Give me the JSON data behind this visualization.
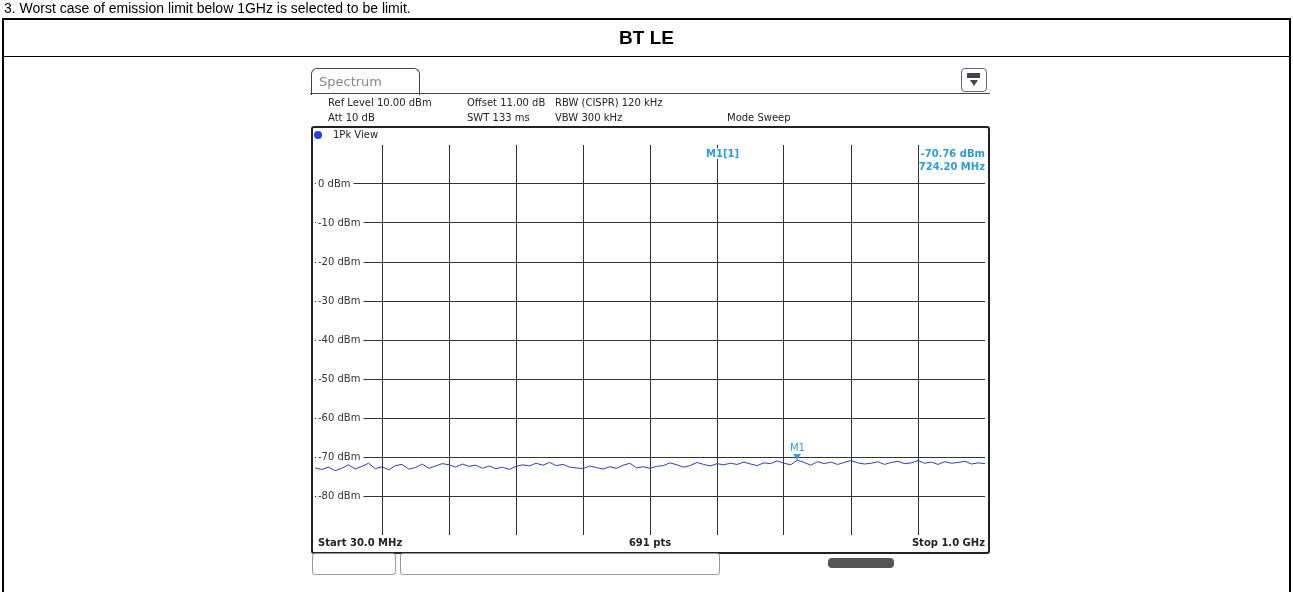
{
  "chart_data": {
    "type": "line",
    "title": "BT LE",
    "annotations": [
      "3.  Worst case of emission limit below 1GHz is selected to be limit.",
      "Spectrum",
      "Ref Level 10.00 dBm",
      "Offset 11.00 dB",
      "RBW (CISPR) 120 kHz",
      "Att 10 dB",
      "SWT 133 ms",
      "VBW 300 kHz",
      "Mode Sweep",
      "1Pk View",
      "M1[1]",
      "-70.76 dBm",
      "724.20 MHz",
      "Start 30.0 MHz",
      "691 pts",
      "Stop 1.0 GHz",
      {
        "text": "M1",
        "y": -70.76
      }
    ],
    "categories": [
      null,
      null,
      null,
      null,
      null,
      null,
      null,
      null,
      null,
      null,
      null,
      null,
      null,
      null,
      null,
      null,
      null,
      null,
      null,
      null,
      null,
      null,
      null,
      null,
      null,
      null,
      null,
      null,
      null,
      null,
      null,
      null,
      null,
      null,
      null,
      null,
      null,
      null,
      null,
      null,
      null,
      null,
      null,
      null,
      null,
      null,
      null,
      null,
      null,
      null,
      null,
      null,
      null,
      null,
      null,
      null,
      null,
      null,
      null,
      null,
      null,
      null,
      null,
      null,
      null,
      null,
      null,
      null,
      null,
      null,
      null,
      null,
      null,
      null,
      null,
      null,
      null,
      null,
      null,
      null,
      null,
      null,
      null,
      null,
      null,
      null,
      null,
      null,
      null,
      null,
      null,
      null,
      null,
      null,
      null,
      null,
      null,
      null,
      null,
      null,
      null
    ],
    "series": [
      {
        "color": "#3535e0",
        "values": [
          -72.8,
          -73.2,
          -72.6,
          -73.5,
          -72.9,
          -72.0,
          -73.1,
          -72.4,
          -71.6,
          -73.0,
          -72.5,
          -73.3,
          -72.2,
          -71.9,
          -73.1,
          -72.7,
          -71.8,
          -72.9,
          -72.3,
          -71.7,
          -72.0,
          -72.6,
          -71.8,
          -72.4,
          -72.1,
          -72.9,
          -72.3,
          -73.0,
          -72.6,
          -73.2,
          -72.4,
          -72.0,
          -72.3,
          -71.6,
          -72.1,
          -71.4,
          -72.2,
          -71.9,
          -72.6,
          -72.8,
          -73.0,
          -72.3,
          -72.7,
          -73.1,
          -72.5,
          -72.9,
          -72.1,
          -71.6,
          -72.8,
          -72.5,
          -72.9,
          -72.4,
          -72.2,
          -71.5,
          -72.0,
          -72.6,
          -72.2,
          -71.4,
          -71.9,
          -72.3,
          -71.7,
          -72.0,
          -71.6,
          -71.9,
          -71.3,
          -71.8,
          -72.2,
          -71.5,
          -71.7,
          -71.0,
          -71.6,
          -72.0,
          -70.8,
          -71.4,
          -72.1,
          -71.2,
          -71.7,
          -71.3,
          -71.9,
          -71.4,
          -70.9,
          -71.5,
          -71.8,
          -71.6,
          -71.2,
          -71.9,
          -71.4,
          -71.1,
          -71.7,
          -71.5,
          -70.9,
          -71.6,
          -71.3,
          -71.9,
          -71.2,
          -71.6,
          -71.4,
          -71.1,
          -71.8,
          -71.5,
          -71.7
        ]
      }
    ],
    "ylim": [
      -90,
      10
    ],
    "yticks": [
      {
        "value": 0,
        "label": "0 dBm"
      },
      {
        "value": -10,
        "label": "-10 dBm"
      },
      {
        "value": -20,
        "label": "-20 dBm"
      },
      {
        "value": -30,
        "label": "-30 dBm"
      },
      {
        "value": -40,
        "label": "-40 dBm"
      },
      {
        "value": -50,
        "label": "-50 dBm"
      },
      {
        "value": -60,
        "label": "-60 dBm"
      },
      {
        "value": -70,
        "label": "-70 dBm"
      },
      {
        "value": -80,
        "label": "-80 dBm"
      }
    ],
    "tick_labels": "y",
    "grid": true,
    "legend": false,
    "marker": "none",
    "line_style": "solid"
  }
}
